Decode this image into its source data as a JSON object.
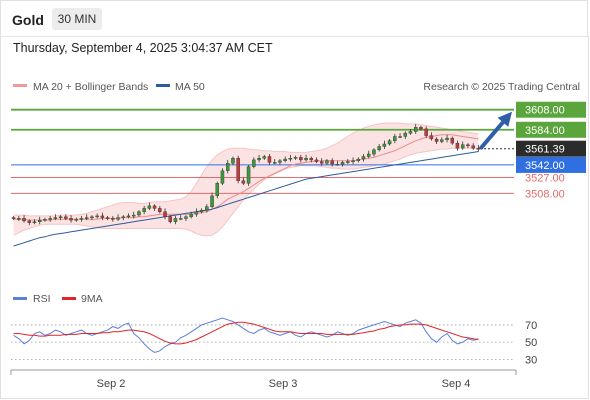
{
  "header": {
    "symbol": "Gold",
    "interval": "30 MIN",
    "datetime": "Thursday, September 4, 2025 3:04:37 AM CET",
    "credit": "Research © 2025 Trading Central"
  },
  "legend_main": [
    {
      "label": "MA 20 + Bollinger Bands",
      "color": "#f29a9a"
    },
    {
      "label": "MA 50",
      "color": "#2f5a9e"
    }
  ],
  "legend_rsi": [
    {
      "label": "RSI",
      "color": "#5b7fdb"
    },
    {
      "label": "9MA",
      "color": "#e0262a"
    }
  ],
  "colors": {
    "target": "#5aa63c",
    "support": "#e36b6b",
    "pivot": "#2f6fe0",
    "last": "#2b2b2b",
    "candle_up": "#3d9a3a",
    "candle_down": "#c43a3a",
    "band": "#fbe3e3",
    "arrow": "#2e5fa8"
  },
  "chart_data": [
    {
      "type": "candlestick",
      "y_domain": [
        3402,
        3622
      ],
      "x_labels": [
        "Sep 2",
        "Sep 3",
        "Sep 4"
      ],
      "levels": [
        {
          "value": 3608.0,
          "label": "3608.00",
          "kind": "target"
        },
        {
          "value": 3584.0,
          "label": "3584.00",
          "kind": "target"
        },
        {
          "value": 3561.39,
          "label": "3561.39",
          "kind": "last"
        },
        {
          "value": 3542.0,
          "label": "3542.00",
          "kind": "pivot"
        },
        {
          "value": 3527.0,
          "label": "3527.00",
          "kind": "support"
        },
        {
          "value": 3508.0,
          "label": "3508.00",
          "kind": "support"
        }
      ],
      "close": [
        3478,
        3478,
        3475,
        3473,
        3474,
        3476,
        3477,
        3478,
        3479,
        3480,
        3478,
        3476,
        3477,
        3478,
        3479,
        3480,
        3481,
        3479,
        3478,
        3477,
        3479,
        3480,
        3481,
        3482,
        3486,
        3490,
        3493,
        3490,
        3486,
        3480,
        3474,
        3478,
        3478,
        3480,
        3483,
        3486,
        3488,
        3492,
        3505,
        3520,
        3535,
        3544,
        3550,
        3523,
        3520,
        3540,
        3548,
        3550,
        3552,
        3545,
        3545,
        3547,
        3549,
        3550,
        3551,
        3548,
        3550,
        3548,
        3546,
        3544,
        3547,
        3543,
        3543,
        3545,
        3546,
        3547,
        3549,
        3552,
        3555,
        3560,
        3564,
        3567,
        3571,
        3576,
        3576,
        3580,
        3582,
        3587,
        3585,
        3577,
        3573,
        3570,
        3572,
        3574,
        3568,
        3562,
        3566,
        3565,
        3562,
        3561
      ],
      "ma20": [
        3477,
        3477,
        3477,
        3476,
        3476,
        3476,
        3476,
        3476,
        3477,
        3477,
        3477,
        3477,
        3477,
        3477,
        3477,
        3477,
        3477,
        3478,
        3478,
        3478,
        3478,
        3479,
        3479,
        3479,
        3480,
        3480,
        3481,
        3482,
        3483,
        3483,
        3483,
        3483,
        3483,
        3483,
        3483,
        3484,
        3485,
        3486,
        3489,
        3492,
        3496,
        3501,
        3504,
        3507,
        3510,
        3514,
        3518,
        3522,
        3526,
        3529,
        3532,
        3535,
        3538,
        3541,
        3543,
        3544,
        3545,
        3546,
        3547,
        3547,
        3547,
        3547,
        3547,
        3547,
        3547,
        3547,
        3548,
        3549,
        3550,
        3551,
        3553,
        3555,
        3557,
        3559,
        3562,
        3565,
        3568,
        3571,
        3573,
        3575,
        3576,
        3577,
        3578,
        3578,
        3578,
        3577,
        3576,
        3575,
        3574,
        3573
      ],
      "bb_upper": [
        3482,
        3482,
        3482,
        3481,
        3481,
        3481,
        3481,
        3481,
        3481,
        3482,
        3482,
        3482,
        3482,
        3483,
        3484,
        3486,
        3488,
        3490,
        3492,
        3494,
        3496,
        3497,
        3497,
        3497,
        3496,
        3496,
        3497,
        3498,
        3498,
        3498,
        3499,
        3500,
        3501,
        3504,
        3510,
        3520,
        3530,
        3540,
        3548,
        3554,
        3558,
        3561,
        3562,
        3562,
        3562,
        3561,
        3560,
        3560,
        3559,
        3559,
        3558,
        3558,
        3558,
        3557,
        3557,
        3557,
        3557,
        3558,
        3559,
        3560,
        3562,
        3565,
        3568,
        3572,
        3576,
        3580,
        3583,
        3586,
        3588,
        3590,
        3591,
        3592,
        3592,
        3592,
        3592,
        3591,
        3591,
        3591,
        3590,
        3589,
        3588,
        3587,
        3586,
        3585,
        3584,
        3583,
        3582,
        3581,
        3580,
        3579
      ],
      "bb_lower": [
        3458,
        3461,
        3464,
        3466,
        3468,
        3470,
        3471,
        3471,
        3471,
        3471,
        3471,
        3471,
        3471,
        3470,
        3469,
        3468,
        3467,
        3466,
        3466,
        3466,
        3466,
        3466,
        3466,
        3466,
        3466,
        3466,
        3466,
        3466,
        3466,
        3466,
        3466,
        3466,
        3466,
        3465,
        3463,
        3460,
        3458,
        3457,
        3458,
        3462,
        3468,
        3476,
        3484,
        3492,
        3500,
        3507,
        3513,
        3519,
        3524,
        3528,
        3531,
        3534,
        3537,
        3539,
        3540,
        3541,
        3541,
        3541,
        3541,
        3540,
        3539,
        3538,
        3538,
        3537,
        3537,
        3537,
        3538,
        3539,
        3540,
        3541,
        3542,
        3543,
        3545,
        3547,
        3549,
        3552,
        3554,
        3556,
        3557,
        3558,
        3559,
        3560,
        3561,
        3561,
        3562,
        3562,
        3562,
        3562,
        3562,
        3562
      ],
      "ma50": [
        3445,
        3447,
        3449,
        3451,
        3453,
        3455,
        3456,
        3458,
        3459,
        3460,
        3461,
        3462,
        3463,
        3464,
        3465,
        3466,
        3467,
        3468,
        3469,
        3470,
        3471,
        3472,
        3473,
        3474,
        3475,
        3476,
        3477,
        3478,
        3479,
        3480,
        3481,
        3482,
        3483,
        3484,
        3485,
        3486,
        3487,
        3488,
        3489,
        3491,
        3493,
        3495,
        3497,
        3499,
        3501,
        3503,
        3505,
        3507,
        3509,
        3511,
        3513,
        3515,
        3517,
        3519,
        3521,
        3523,
        3525,
        3526,
        3527,
        3528,
        3529,
        3530,
        3531,
        3532,
        3533,
        3534,
        3535,
        3536,
        3537,
        3538,
        3539,
        3540,
        3541,
        3542,
        3543,
        3544,
        3545,
        3546,
        3547,
        3548,
        3549,
        3550,
        3551,
        3552,
        3553,
        3554,
        3555,
        3556,
        3557,
        3558
      ]
    },
    {
      "type": "line",
      "name": "RSI",
      "y_domain": [
        20,
        85
      ],
      "ticks": [
        70,
        50,
        30
      ],
      "rsi": [
        58,
        54,
        48,
        52,
        60,
        62,
        58,
        60,
        64,
        62,
        58,
        60,
        62,
        64,
        60,
        58,
        60,
        62,
        64,
        68,
        66,
        70,
        72,
        60,
        55,
        48,
        42,
        38,
        40,
        45,
        48,
        50,
        55,
        58,
        62,
        66,
        70,
        72,
        74,
        76,
        78,
        76,
        74,
        70,
        66,
        62,
        60,
        64,
        66,
        62,
        60,
        58,
        60,
        62,
        58,
        56,
        60,
        62,
        60,
        58,
        56,
        58,
        62,
        60,
        58,
        60,
        64,
        66,
        68,
        70,
        72,
        74,
        72,
        70,
        68,
        72,
        74,
        76,
        72,
        62,
        54,
        50,
        56,
        60,
        52,
        48,
        50,
        54,
        52,
        54
      ],
      "ma9": [
        60,
        60,
        59,
        58,
        58,
        57,
        57,
        58,
        58,
        58,
        59,
        59,
        59,
        60,
        60,
        60,
        60,
        61,
        61,
        62,
        62,
        63,
        64,
        64,
        63,
        62,
        60,
        57,
        54,
        51,
        49,
        48,
        48,
        49,
        51,
        53,
        56,
        59,
        62,
        65,
        68,
        71,
        72,
        73,
        73,
        72,
        71,
        69,
        67,
        65,
        63,
        62,
        62,
        62,
        61,
        60,
        60,
        60,
        60,
        60,
        59,
        59,
        59,
        59,
        59,
        59,
        60,
        61,
        62,
        63,
        65,
        66,
        68,
        69,
        70,
        70,
        71,
        71,
        71,
        70,
        68,
        66,
        64,
        62,
        60,
        58,
        56,
        55,
        54,
        53
      ]
    }
  ]
}
